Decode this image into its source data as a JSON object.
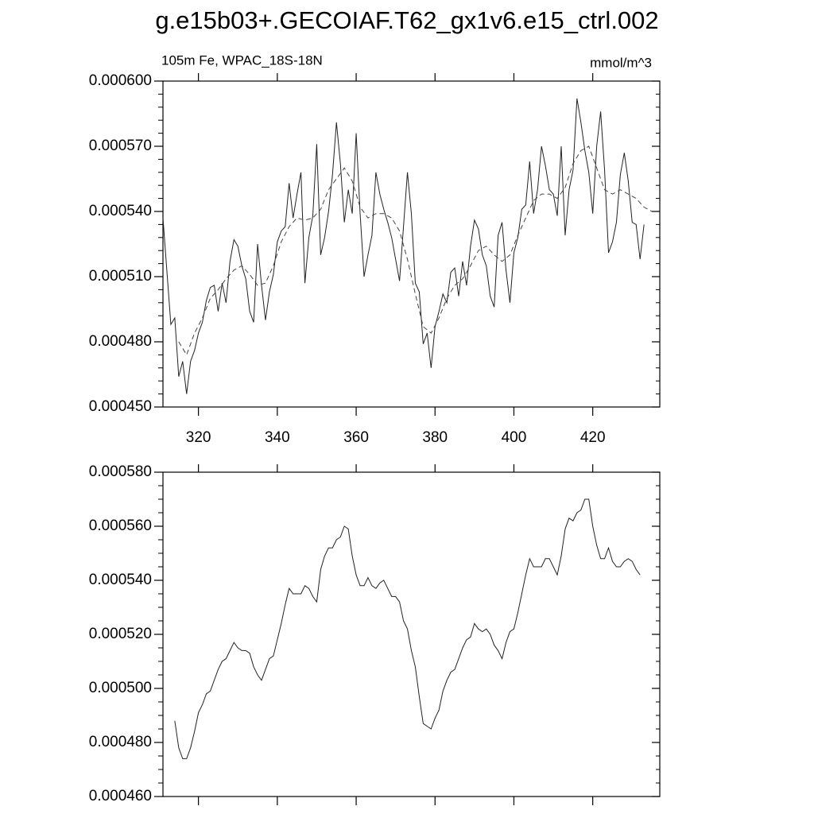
{
  "chart_data": [
    {
      "type": "line",
      "title": "g.e15b03+.GECOIAF.T62_gx1v6.e15_ctrl.002",
      "left_string": "105m Fe, WPAC_18S-18N",
      "right_string": "mmol/m^3",
      "xlim": [
        311,
        437
      ],
      "xticks": [
        320,
        340,
        360,
        380,
        400,
        420
      ],
      "show_xtick_labels": true,
      "ylim": [
        0.00045,
        0.0006
      ],
      "yticks": [
        {
          "value": 0.00045,
          "label": "0.000450"
        },
        {
          "value": 0.00048,
          "label": "0.000480"
        },
        {
          "value": 0.00051,
          "label": "0.000510"
        },
        {
          "value": 0.00054,
          "label": "0.000540"
        },
        {
          "value": 0.00057,
          "label": "0.000570"
        },
        {
          "value": 0.0006,
          "label": "0.000600"
        }
      ],
      "y_minor_divisions": 5,
      "series": [
        {
          "color": "#222222",
          "dashed": false,
          "x": [
            311,
            313,
            314,
            315,
            316,
            317,
            318,
            319,
            320,
            321,
            322,
            323,
            324,
            325,
            326,
            327,
            328,
            329,
            330,
            331,
            332,
            333,
            334,
            335,
            336,
            337,
            338,
            339,
            340,
            341,
            342,
            343,
            344,
            345,
            346,
            347,
            348,
            349,
            350,
            351,
            352,
            353,
            354,
            355,
            356,
            357,
            358,
            359,
            360,
            361,
            362,
            363,
            364,
            365,
            366,
            367,
            368,
            369,
            370,
            371,
            372,
            373,
            374,
            375,
            376,
            377,
            378,
            379,
            380,
            381,
            382,
            383,
            384,
            385,
            386,
            387,
            388,
            389,
            390,
            391,
            392,
            393,
            394,
            395,
            396,
            397,
            398,
            399,
            400,
            401,
            402,
            403,
            404,
            405,
            406,
            407,
            408,
            409,
            410,
            411,
            412,
            413,
            414,
            415,
            416,
            417,
            418,
            419,
            420,
            421,
            422,
            423,
            424,
            425,
            426,
            427,
            428,
            429,
            430,
            431,
            432,
            433
          ],
          "values": [
            0.000537,
            0.000488,
            0.000491,
            0.000464,
            0.000471,
            0.000456,
            0.000471,
            0.000476,
            0.000484,
            0.000489,
            0.000499,
            0.000505,
            0.000506,
            0.000494,
            0.000507,
            0.000498,
            0.000517,
            0.000527,
            0.000524,
            0.000515,
            0.000509,
            0.000494,
            0.000489,
            0.000525,
            0.000506,
            0.00049,
            0.000503,
            0.000511,
            0.000526,
            0.000531,
            0.000533,
            0.000553,
            0.000537,
            0.000548,
            0.000558,
            0.000507,
            0.000528,
            0.000538,
            0.000571,
            0.00052,
            0.000528,
            0.00054,
            0.000557,
            0.000581,
            0.000562,
            0.000535,
            0.00055,
            0.000539,
            0.000576,
            0.000539,
            0.00051,
            0.00052,
            0.000529,
            0.000558,
            0.000548,
            0.000541,
            0.000535,
            0.000528,
            0.000518,
            0.000508,
            0.000533,
            0.000558,
            0.000539,
            0.000507,
            0.000503,
            0.000479,
            0.000484,
            0.000468,
            0.000487,
            0.000494,
            0.000502,
            0.000498,
            0.000512,
            0.000514,
            0.000501,
            0.000517,
            0.000506,
            0.000524,
            0.000536,
            0.000532,
            0.00052,
            0.000515,
            0.000501,
            0.000496,
            0.000529,
            0.000535,
            0.000513,
            0.000498,
            0.000521,
            0.000528,
            0.000541,
            0.000543,
            0.000563,
            0.000539,
            0.00055,
            0.00057,
            0.000561,
            0.00055,
            0.000548,
            0.000538,
            0.00057,
            0.000529,
            0.00055,
            0.000559,
            0.000592,
            0.000581,
            0.000568,
            0.000558,
            0.000539,
            0.00057,
            0.000586,
            0.000559,
            0.000521,
            0.000526,
            0.000535,
            0.000557,
            0.000567,
            0.000554,
            0.000535,
            0.000534,
            0.000518,
            0.000534
          ]
        },
        {
          "color": "#444444",
          "dashed": true,
          "x": [
            315,
            317,
            319,
            321,
            323,
            325,
            327,
            329,
            331,
            333,
            335,
            337,
            339,
            341,
            343,
            345,
            347,
            349,
            351,
            353,
            355,
            357,
            359,
            361,
            363,
            365,
            367,
            369,
            371,
            373,
            375,
            377,
            379,
            381,
            383,
            385,
            387,
            389,
            391,
            393,
            395,
            397,
            399,
            401,
            403,
            405,
            407,
            409,
            411,
            413,
            415,
            417,
            419,
            421,
            423,
            425,
            427,
            429,
            431,
            433,
            435
          ],
          "values": [
            0.00048,
            0.000474,
            0.000484,
            0.000491,
            0.0005,
            0.000504,
            0.000509,
            0.000513,
            0.000515,
            0.000511,
            0.000506,
            0.000507,
            0.000515,
            0.000526,
            0.000533,
            0.000537,
            0.000536,
            0.000537,
            0.000541,
            0.00055,
            0.000555,
            0.00056,
            0.000554,
            0.000542,
            0.000537,
            0.000539,
            0.000539,
            0.000537,
            0.000531,
            0.000518,
            0.000502,
            0.000487,
            0.000484,
            0.000491,
            0.0005,
            0.000506,
            0.000509,
            0.000515,
            0.000522,
            0.000524,
            0.00052,
            0.000517,
            0.00052,
            0.000529,
            0.000537,
            0.000545,
            0.000548,
            0.000548,
            0.000546,
            0.000551,
            0.000562,
            0.000568,
            0.00057,
            0.00056,
            0.00055,
            0.000548,
            0.00055,
            0.000548,
            0.000546,
            0.000542,
            0.00054
          ]
        }
      ]
    },
    {
      "type": "line",
      "xlim": [
        311,
        437
      ],
      "xticks": [
        320,
        340,
        360,
        380,
        400,
        420
      ],
      "show_xtick_labels": false,
      "ylim": [
        0.00046,
        0.00058
      ],
      "yticks": [
        {
          "value": 0.00046,
          "label": "0.000460"
        },
        {
          "value": 0.00048,
          "label": "0.000480"
        },
        {
          "value": 0.0005,
          "label": "0.000500"
        },
        {
          "value": 0.00052,
          "label": "0.000520"
        },
        {
          "value": 0.00054,
          "label": "0.000540"
        },
        {
          "value": 0.00056,
          "label": "0.000560"
        },
        {
          "value": 0.00058,
          "label": "0.000580"
        }
      ],
      "y_minor_divisions": 4,
      "series": [
        {
          "color": "#222222",
          "dashed": false,
          "x": [
            314,
            315,
            316,
            317,
            318,
            319,
            320,
            321,
            322,
            323,
            324,
            325,
            326,
            327,
            328,
            329,
            330,
            331,
            332,
            333,
            334,
            335,
            336,
            337,
            338,
            339,
            340,
            341,
            342,
            343,
            344,
            345,
            346,
            347,
            348,
            349,
            350,
            351,
            352,
            353,
            354,
            355,
            356,
            357,
            358,
            359,
            360,
            361,
            362,
            363,
            364,
            365,
            366,
            367,
            368,
            369,
            370,
            371,
            372,
            373,
            374,
            375,
            376,
            377,
            378,
            379,
            380,
            381,
            382,
            383,
            384,
            385,
            386,
            387,
            388,
            389,
            390,
            391,
            392,
            393,
            394,
            395,
            396,
            397,
            398,
            399,
            400,
            401,
            402,
            403,
            404,
            405,
            406,
            407,
            408,
            409,
            410,
            411,
            412,
            413,
            414,
            415,
            416,
            417,
            418,
            419,
            420,
            421,
            422,
            423,
            424,
            425,
            426,
            427,
            428,
            429,
            430,
            431,
            432
          ],
          "values": [
            0.000488,
            0.000478,
            0.000474,
            0.000474,
            0.000478,
            0.000484,
            0.000491,
            0.000494,
            0.000498,
            0.000499,
            0.000503,
            0.000507,
            0.00051,
            0.000511,
            0.000514,
            0.000517,
            0.000515,
            0.000514,
            0.000514,
            0.000513,
            0.000508,
            0.000505,
            0.000503,
            0.000507,
            0.000511,
            0.000512,
            0.000518,
            0.000524,
            0.000531,
            0.000537,
            0.000535,
            0.000535,
            0.000535,
            0.000538,
            0.000537,
            0.000534,
            0.000532,
            0.000544,
            0.000549,
            0.000552,
            0.000552,
            0.000555,
            0.000556,
            0.00056,
            0.000559,
            0.000549,
            0.000542,
            0.000538,
            0.000538,
            0.000541,
            0.000538,
            0.000537,
            0.000539,
            0.00054,
            0.000537,
            0.000534,
            0.000534,
            0.000532,
            0.000525,
            0.000522,
            0.000514,
            0.000508,
            0.000497,
            0.000487,
            0.000486,
            0.000485,
            0.000489,
            0.000492,
            0.000499,
            0.000503,
            0.000506,
            0.000507,
            0.000511,
            0.000515,
            0.000518,
            0.000519,
            0.000524,
            0.000522,
            0.000521,
            0.000522,
            0.00052,
            0.000516,
            0.000514,
            0.000511,
            0.000517,
            0.000521,
            0.000522,
            0.000528,
            0.000535,
            0.000542,
            0.000548,
            0.000545,
            0.000545,
            0.000545,
            0.000548,
            0.000548,
            0.000545,
            0.000542,
            0.000549,
            0.000559,
            0.000563,
            0.000562,
            0.000565,
            0.000566,
            0.00057,
            0.00057,
            0.00056,
            0.000553,
            0.000548,
            0.000548,
            0.000552,
            0.000547,
            0.000545,
            0.000545,
            0.000547,
            0.000548,
            0.000547,
            0.000544,
            0.000542
          ]
        }
      ]
    }
  ]
}
